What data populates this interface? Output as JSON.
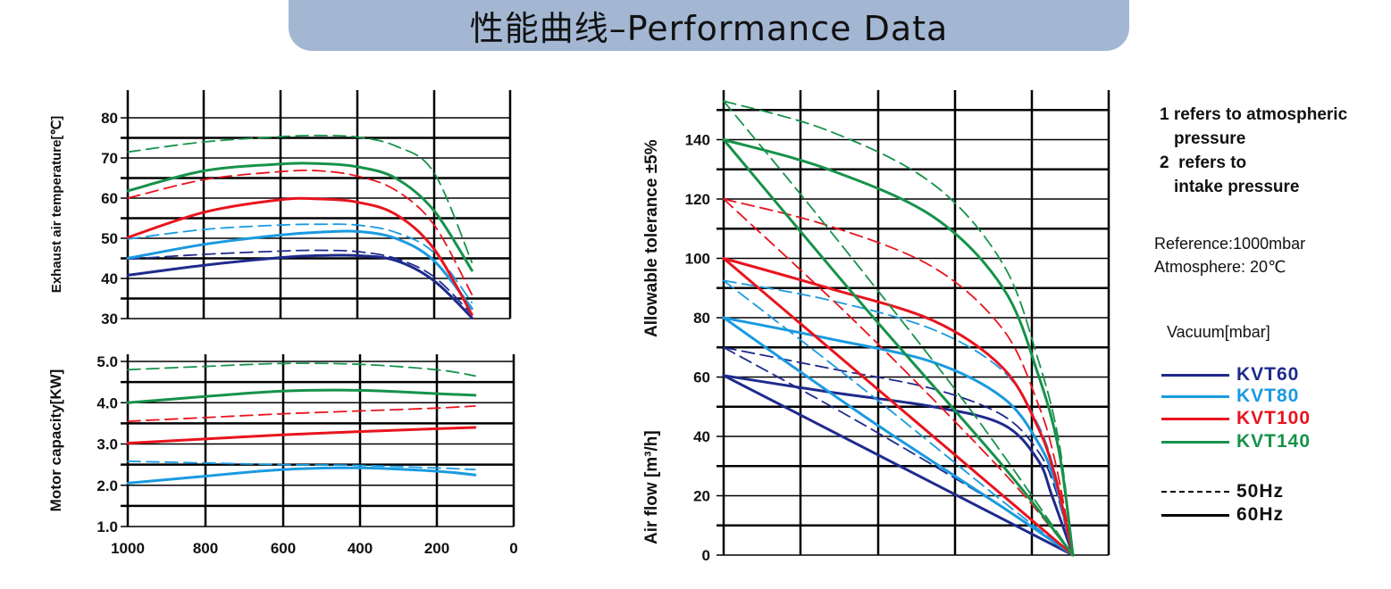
{
  "banner": {
    "title": "性能曲线–Performance Data"
  },
  "notes": {
    "note1_line1": "1 refers to atmospheric",
    "note1_line2": "pressure",
    "note2_line1": "2  refers to",
    "note2_line2": "intake pressure"
  },
  "reference": {
    "line1": "Reference:1000mbar",
    "line2": "Atmosphere: 20℃"
  },
  "legend": {
    "title": "Vacuum[mbar]",
    "models": [
      {
        "name": "KVT60",
        "color": "#1f2a8c"
      },
      {
        "name": "KVT80",
        "color": "#1a9ae0"
      },
      {
        "name": "KVT100",
        "color": "#e8141e"
      },
      {
        "name": "KVT140",
        "color": "#16924a"
      }
    ],
    "freq_dash": "50Hz",
    "freq_solid": "60Hz"
  },
  "chart_data": [
    {
      "id": "temp",
      "type": "line",
      "title": "",
      "xlabel": "",
      "ylabel": "Exhaust air temperature[℃]",
      "xlim": [
        1000,
        0
      ],
      "ylim": [
        30,
        80
      ],
      "yticks": [
        "30",
        "40",
        "50",
        "60",
        "70",
        "80"
      ],
      "xticks": [],
      "series": [
        {
          "name": "KVT60 60Hz",
          "model": "KVT60",
          "freq": "60Hz",
          "x": [
            1000,
            800,
            600,
            500,
            400,
            300,
            200,
            100
          ],
          "y": [
            40.8,
            43.3,
            45.2,
            45.7,
            45.7,
            44.5,
            39.5,
            30.2
          ]
        },
        {
          "name": "KVT60 50Hz",
          "model": "KVT60",
          "freq": "50Hz",
          "x": [
            1000,
            800,
            600,
            500,
            400,
            300,
            200,
            100
          ],
          "y": [
            44.8,
            46.0,
            46.8,
            47.0,
            46.7,
            45.0,
            40.5,
            31.0
          ]
        },
        {
          "name": "KVT80 60Hz",
          "model": "KVT80",
          "freq": "60Hz",
          "x": [
            1000,
            800,
            600,
            500,
            400,
            300,
            200,
            100
          ],
          "y": [
            45.0,
            48.5,
            50.8,
            51.5,
            51.7,
            50.0,
            44.5,
            32.5
          ]
        },
        {
          "name": "KVT80 50Hz",
          "model": "KVT80",
          "freq": "50Hz",
          "x": [
            1000,
            800,
            600,
            500,
            400,
            300,
            200,
            100
          ],
          "y": [
            49.8,
            52.2,
            53.3,
            53.5,
            53.3,
            51.5,
            46.5,
            34.0
          ]
        },
        {
          "name": "KVT100 60Hz",
          "model": "KVT100",
          "freq": "60Hz",
          "x": [
            1000,
            800,
            600,
            500,
            400,
            300,
            200,
            100
          ],
          "y": [
            50.2,
            56.5,
            59.6,
            59.8,
            59.0,
            56.0,
            47.5,
            31.0
          ]
        },
        {
          "name": "KVT100 50Hz",
          "model": "KVT100",
          "freq": "50Hz",
          "x": [
            1000,
            800,
            600,
            500,
            400,
            300,
            200,
            100
          ],
          "y": [
            60.0,
            64.6,
            66.6,
            66.8,
            65.5,
            62.0,
            53.5,
            36.0
          ]
        },
        {
          "name": "KVT140 60Hz",
          "model": "KVT140",
          "freq": "60Hz",
          "x": [
            1000,
            800,
            600,
            500,
            400,
            300,
            200,
            100
          ],
          "y": [
            61.8,
            66.8,
            68.5,
            68.6,
            67.8,
            65.0,
            57.0,
            42.0
          ]
        },
        {
          "name": "KVT140 50Hz",
          "model": "KVT140",
          "freq": "50Hz",
          "x": [
            1000,
            800,
            600,
            500,
            400,
            300,
            200,
            100
          ],
          "y": [
            71.5,
            74.0,
            75.3,
            75.6,
            75.2,
            73.0,
            66.5,
            44.0
          ]
        }
      ]
    },
    {
      "id": "power",
      "type": "line",
      "title": "",
      "xlabel": "",
      "ylabel": "Motor capacity[KW]",
      "xlim": [
        1000,
        0
      ],
      "ylim": [
        1.0,
        5.0
      ],
      "yticks": [
        "1.0",
        "2.0",
        "3.0",
        "4.0",
        "5.0"
      ],
      "xticks": [
        "1000",
        "800",
        "600",
        "400",
        "200",
        "0"
      ],
      "series": [
        {
          "name": "KVT80 60Hz",
          "model": "KVT80",
          "freq": "60Hz",
          "x": [
            1000,
            800,
            600,
            400,
            200,
            100
          ],
          "y": [
            2.05,
            2.22,
            2.38,
            2.42,
            2.34,
            2.25
          ]
        },
        {
          "name": "KVT80 50Hz",
          "model": "KVT80",
          "freq": "50Hz",
          "x": [
            1000,
            800,
            600,
            400,
            200,
            100
          ],
          "y": [
            2.58,
            2.54,
            2.5,
            2.48,
            2.42,
            2.38
          ]
        },
        {
          "name": "KVT100 60Hz",
          "model": "KVT100",
          "freq": "60Hz",
          "x": [
            1000,
            800,
            600,
            400,
            200,
            100
          ],
          "y": [
            3.02,
            3.12,
            3.22,
            3.3,
            3.37,
            3.4
          ]
        },
        {
          "name": "KVT100 50Hz",
          "model": "KVT100",
          "freq": "50Hz",
          "x": [
            1000,
            800,
            600,
            400,
            200,
            100
          ],
          "y": [
            3.55,
            3.64,
            3.73,
            3.8,
            3.87,
            3.92
          ]
        },
        {
          "name": "KVT140 60Hz",
          "model": "KVT140",
          "freq": "60Hz",
          "x": [
            1000,
            800,
            600,
            400,
            200,
            100
          ],
          "y": [
            4.0,
            4.15,
            4.28,
            4.3,
            4.22,
            4.18
          ]
        },
        {
          "name": "KVT140 50Hz",
          "model": "KVT140",
          "freq": "50Hz",
          "x": [
            1000,
            800,
            600,
            400,
            200,
            100
          ],
          "y": [
            4.8,
            4.88,
            4.95,
            4.93,
            4.8,
            4.65
          ]
        }
      ]
    },
    {
      "id": "airflow",
      "type": "line",
      "title": "",
      "xlabel": "",
      "ylabel": "Air flow [m³/h]",
      "ylabel2": "Allowable tolerance ±5%",
      "xlim": [
        0,
        1000
      ],
      "ylim": [
        0,
        156
      ],
      "yticks": [
        "0",
        "20",
        "40",
        "60",
        "80",
        "100",
        "120",
        "140"
      ],
      "xticks": [],
      "series": [
        {
          "name": "KVT60 60Hz (1)",
          "model": "KVT60",
          "freq": "60Hz",
          "x": [
            0,
            300,
            600,
            800,
            900,
            940,
            1000
          ],
          "y": [
            60.5,
            55.0,
            50.0,
            44.0,
            32.0,
            20.0,
            0
          ]
        },
        {
          "name": "KVT60 50Hz (1)",
          "model": "KVT60",
          "freq": "50Hz",
          "x": [
            0,
            300,
            600,
            800,
            900,
            950,
            1000
          ],
          "y": [
            70.0,
            63.0,
            56.0,
            47.0,
            35.0,
            22.0,
            0
          ]
        },
        {
          "name": "KVT60 60Hz (2)",
          "model": "KVT60",
          "freq": "60Hz",
          "x": [
            0,
            1000
          ],
          "y": [
            60.5,
            0
          ]
        },
        {
          "name": "KVT60 50Hz (2)",
          "model": "KVT60",
          "freq": "50Hz",
          "x": [
            0,
            400,
            800,
            1000
          ],
          "y": [
            70.0,
            44.0,
            16.0,
            0
          ]
        },
        {
          "name": "KVT80 60Hz (1)",
          "model": "KVT80",
          "freq": "60Hz",
          "x": [
            0,
            300,
            600,
            800,
            900,
            950,
            1000
          ],
          "y": [
            80.0,
            73.0,
            65.0,
            53.0,
            38.0,
            24.0,
            0
          ]
        },
        {
          "name": "KVT80 50Hz (1)",
          "model": "KVT80",
          "freq": "50Hz",
          "x": [
            0,
            300,
            600,
            800,
            900,
            950,
            1000
          ],
          "y": [
            92.5,
            86.0,
            76.0,
            62.0,
            44.0,
            27.0,
            0
          ]
        },
        {
          "name": "KVT80 60Hz (2)",
          "model": "KVT80",
          "freq": "60Hz",
          "x": [
            0,
            400,
            800,
            1000
          ],
          "y": [
            80.0,
            47.0,
            16.0,
            0
          ]
        },
        {
          "name": "KVT80 50Hz (2)",
          "model": "KVT80",
          "freq": "50Hz",
          "x": [
            0,
            400,
            800,
            1000
          ],
          "y": [
            92.5,
            56.0,
            18.0,
            0
          ]
        },
        {
          "name": "KVT100 60Hz (1)",
          "model": "KVT100",
          "freq": "60Hz",
          "x": [
            0,
            300,
            600,
            800,
            900,
            950,
            1000
          ],
          "y": [
            100.0,
            90.0,
            79.0,
            63.0,
            43.0,
            26.0,
            0
          ]
        },
        {
          "name": "KVT100 50Hz (1)",
          "model": "KVT100",
          "freq": "50Hz",
          "x": [
            0,
            300,
            600,
            800,
            900,
            950,
            1000
          ],
          "y": [
            120.0,
            111.0,
            97.0,
            76.0,
            51.0,
            31.0,
            0
          ]
        },
        {
          "name": "KVT100 60Hz (2)",
          "model": "KVT100",
          "freq": "60Hz",
          "x": [
            0,
            400,
            800,
            1000
          ],
          "y": [
            100.0,
            60.0,
            20.0,
            0
          ]
        },
        {
          "name": "KVT100 50Hz (2)",
          "model": "KVT100",
          "freq": "50Hz",
          "x": [
            0,
            400,
            800,
            1000
          ],
          "y": [
            120.0,
            76.0,
            28.0,
            0
          ]
        },
        {
          "name": "KVT140 60Hz (1)",
          "model": "KVT140",
          "freq": "60Hz",
          "x": [
            0,
            300,
            600,
            800,
            900,
            960,
            1000
          ],
          "y": [
            140.0,
            130.0,
            114.0,
            90.0,
            61.0,
            35.0,
            0
          ]
        },
        {
          "name": "KVT140 50Hz (1)",
          "model": "KVT140",
          "freq": "50Hz",
          "x": [
            0,
            300,
            600,
            800,
            900,
            960,
            1000
          ],
          "y": [
            153.0,
            143.0,
            125.0,
            98.0,
            66.0,
            38.0,
            0
          ]
        },
        {
          "name": "KVT140 60Hz (2)",
          "model": "KVT140",
          "freq": "60Hz",
          "x": [
            0,
            400,
            800,
            1000
          ],
          "y": [
            140.0,
            84.0,
            30.0,
            0
          ]
        },
        {
          "name": "KVT140 50Hz (2)",
          "model": "KVT140",
          "freq": "50Hz",
          "x": [
            0,
            300,
            700,
            1000
          ],
          "y": [
            153.0,
            110.0,
            50.0,
            0
          ]
        }
      ]
    }
  ]
}
